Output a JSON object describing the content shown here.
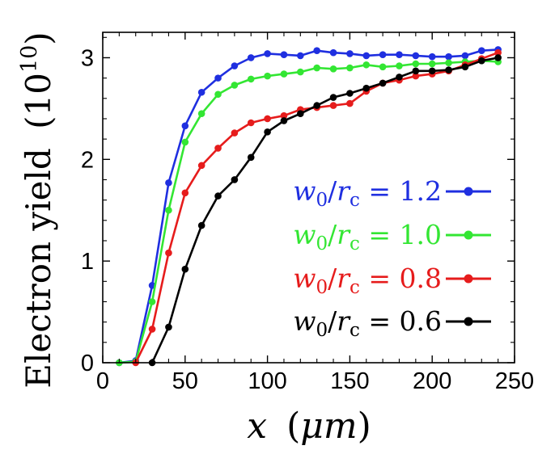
{
  "chart_data": {
    "type": "line",
    "title": "",
    "xlabel": {
      "var": "x",
      "paren_open": "(",
      "unit": "μm",
      "paren_close": ")"
    },
    "ylabel": {
      "text": "Electron yield",
      "paren_open": "(",
      "base": "10",
      "exp": "10",
      "paren_close": ")"
    },
    "xlim": [
      0,
      250
    ],
    "ylim": [
      0,
      3.25
    ],
    "xticks": [
      0,
      50,
      100,
      150,
      200,
      250
    ],
    "xtick_labels": [
      "0",
      "50",
      "100",
      "150",
      "200",
      "250"
    ],
    "yticks": [
      0,
      1,
      2,
      3
    ],
    "ytick_labels": [
      "0",
      "1",
      "2",
      "3"
    ],
    "legend_position": "right-middle",
    "grid": false,
    "series": [
      {
        "name": "w0/rc = 1.2",
        "legend": {
          "w": "w",
          "w_sub": "0",
          "slash": "/",
          "r": "r",
          "r_sub": "c",
          "eq": " = ",
          "val": "1.2"
        },
        "color": "#1f2fe0",
        "x": [
          10,
          20,
          30,
          40,
          50,
          60,
          70,
          80,
          90,
          100,
          110,
          120,
          130,
          140,
          150,
          160,
          170,
          180,
          190,
          200,
          210,
          220,
          230,
          240
        ],
        "y": [
          0.0,
          0.02,
          0.76,
          1.77,
          2.33,
          2.66,
          2.8,
          2.92,
          3.0,
          3.04,
          3.03,
          3.02,
          3.07,
          3.05,
          3.04,
          3.02,
          3.03,
          3.03,
          3.02,
          3.01,
          3.01,
          3.02,
          3.07,
          3.08
        ]
      },
      {
        "name": "w0/rc = 1.0",
        "legend": {
          "w": "w",
          "w_sub": "0",
          "slash": "/",
          "r": "r",
          "r_sub": "c",
          "eq": " = ",
          "val": "1.0"
        },
        "color": "#33e633",
        "x": [
          10,
          20,
          30,
          40,
          50,
          60,
          70,
          80,
          90,
          100,
          110,
          120,
          130,
          140,
          150,
          160,
          170,
          180,
          190,
          200,
          210,
          220,
          230,
          240
        ],
        "y": [
          0.0,
          0.01,
          0.6,
          1.5,
          2.17,
          2.45,
          2.64,
          2.73,
          2.79,
          2.82,
          2.84,
          2.86,
          2.9,
          2.89,
          2.9,
          2.93,
          2.91,
          2.92,
          2.94,
          2.94,
          2.95,
          2.96,
          2.97,
          2.96
        ]
      },
      {
        "name": "w0/rc = 0.8",
        "legend": {
          "w": "w",
          "w_sub": "0",
          "slash": "/",
          "r": "r",
          "r_sub": "c",
          "eq": " = ",
          "val": "0.8"
        },
        "color": "#e61c1c",
        "x": [
          20,
          30,
          40,
          50,
          60,
          70,
          80,
          90,
          100,
          110,
          120,
          130,
          140,
          150,
          160,
          170,
          180,
          190,
          200,
          210,
          220,
          230,
          240
        ],
        "y": [
          0.0,
          0.33,
          1.08,
          1.67,
          1.94,
          2.11,
          2.26,
          2.36,
          2.4,
          2.43,
          2.49,
          2.51,
          2.53,
          2.55,
          2.67,
          2.75,
          2.78,
          2.82,
          2.84,
          2.87,
          2.93,
          2.99,
          3.05
        ]
      },
      {
        "name": "w0/rc = 0.6",
        "legend": {
          "w": "w",
          "w_sub": "0",
          "slash": "/",
          "r": "r",
          "r_sub": "c",
          "eq": " = ",
          "val": "0.6"
        },
        "color": "#000000",
        "x": [
          30,
          40,
          50,
          60,
          70,
          80,
          90,
          100,
          110,
          120,
          130,
          140,
          150,
          160,
          170,
          180,
          190,
          200,
          210,
          220,
          230,
          240
        ],
        "y": [
          0.0,
          0.35,
          0.92,
          1.35,
          1.64,
          1.8,
          2.02,
          2.27,
          2.38,
          2.45,
          2.53,
          2.61,
          2.65,
          2.7,
          2.75,
          2.81,
          2.87,
          2.87,
          2.88,
          2.91,
          2.97,
          3.0
        ]
      }
    ]
  }
}
